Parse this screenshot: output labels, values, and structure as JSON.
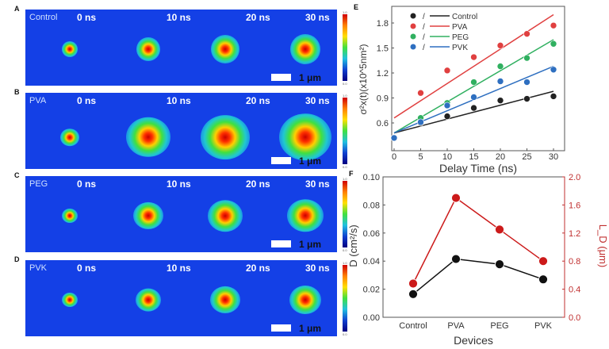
{
  "panels": [
    {
      "letter": "A",
      "sample": "Control",
      "times": [
        "0 ns",
        "10 ns",
        "20 ns",
        "30 ns"
      ],
      "scale": "1 μm"
    },
    {
      "letter": "B",
      "sample": "PVA",
      "times": [
        "0 ns",
        "10 ns",
        "20 ns",
        "30 ns"
      ],
      "scale": "1 μm"
    },
    {
      "letter": "C",
      "sample": "PEG",
      "times": [
        "0 ns",
        "10 ns",
        "20 ns",
        "30 ns"
      ],
      "scale": "1 μm"
    },
    {
      "letter": "D",
      "sample": "PVK",
      "times": [
        "0 ns",
        "10 ns",
        "20 ns",
        "30 ns"
      ],
      "scale": "1 μm"
    }
  ],
  "colorbar": {
    "max": "1.0",
    "min": "0.0"
  },
  "chart_data": [
    {
      "panel": "E",
      "type": "scatter",
      "xlabel": "Delay Time (ns)",
      "ylabel": "σ²x(t)(x10^5nm²)",
      "xlim": [
        -1,
        32
      ],
      "ylim": [
        0.27,
        2.0
      ],
      "xticks": [
        "0",
        "5",
        "10",
        "15",
        "20",
        "25",
        "30"
      ],
      "yticks": [
        "0.6",
        "0.9",
        "1.2",
        "1.5",
        "1.8"
      ],
      "legend": "top-left",
      "x": [
        0,
        5,
        10,
        15,
        20,
        25,
        30
      ],
      "series": [
        {
          "name": "Control",
          "color": "#222222",
          "values": [
            0.42,
            0.6,
            0.68,
            0.78,
            0.87,
            0.89,
            0.92
          ],
          "fit": [
            0.48,
            0.98
          ]
        },
        {
          "name": "PVA",
          "color": "#e04040",
          "values": [
            0.42,
            0.96,
            1.23,
            1.39,
            1.53,
            1.67,
            1.77
          ],
          "fit": [
            0.66,
            1.9
          ]
        },
        {
          "name": "PEG",
          "color": "#30b060",
          "values": [
            0.42,
            0.66,
            0.84,
            1.09,
            1.28,
            1.38,
            1.55
          ],
          "fit": [
            0.48,
            1.6
          ]
        },
        {
          "name": "PVK",
          "color": "#2e6fc0",
          "values": [
            0.42,
            0.61,
            0.81,
            0.91,
            1.1,
            1.09,
            1.24
          ],
          "fit": [
            0.48,
            1.28
          ]
        }
      ],
      "legend_sep": "/"
    },
    {
      "panel": "F",
      "type": "line",
      "xlabel": "Devices",
      "ylabel": "D (cm²/s)",
      "y2label": "L_D (μm)",
      "categories": [
        "Control",
        "PVA",
        "PEG",
        "PVK"
      ],
      "ylim": [
        0,
        0.1
      ],
      "y2lim": [
        0,
        2.0
      ],
      "yticks": [
        "0.00",
        "0.02",
        "0.04",
        "0.06",
        "0.08",
        "0.10"
      ],
      "y2ticks": [
        "0.0",
        "0.4",
        "0.8",
        "1.2",
        "1.6",
        "2.0"
      ],
      "series": [
        {
          "name": "D",
          "axis": "left",
          "color": "#111111",
          "values": [
            0.0165,
            0.0415,
            0.0378,
            0.027
          ]
        },
        {
          "name": "L_D",
          "axis": "right",
          "color": "#cc1a1a",
          "values": [
            0.48,
            1.7,
            1.25,
            0.8
          ]
        }
      ]
    }
  ]
}
